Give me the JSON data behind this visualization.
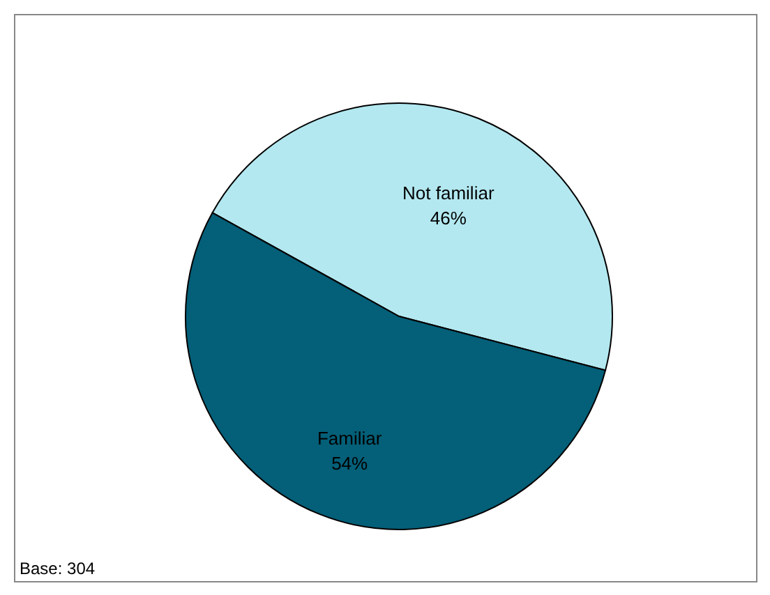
{
  "chart_data": {
    "type": "pie",
    "categories": [
      "Not familiar",
      "Familiar"
    ],
    "values": [
      46,
      54
    ],
    "colors": [
      "#b3e8f0",
      "#045f78"
    ],
    "value_labels": [
      "46%",
      "54%"
    ],
    "legend": false,
    "annotations": [
      "Base: 304"
    ]
  }
}
